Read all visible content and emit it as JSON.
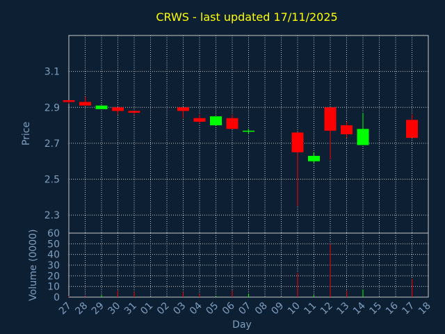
{
  "chart_data": {
    "type": "candlestick",
    "title": "CRWS - last updated 17/11/2025",
    "xlabel": "Day",
    "price_ylabel": "Price",
    "volume_ylabel": "Volume (0000)",
    "x_ticks": [
      "27",
      "28",
      "29",
      "30",
      "31",
      "01",
      "02",
      "03",
      "04",
      "05",
      "06",
      "07",
      "08",
      "09",
      "10",
      "11",
      "12",
      "13",
      "14",
      "15",
      "16",
      "17",
      "18"
    ],
    "price_ticks": [
      2.3,
      2.5,
      2.7,
      2.9,
      3.1
    ],
    "price_ylim": [
      2.2,
      3.3
    ],
    "volume_ticks": [
      0,
      10,
      20,
      30,
      40,
      50,
      60
    ],
    "volume_ylim": [
      0,
      60
    ],
    "grid": true,
    "up_color": "#00ff00",
    "down_color": "#ff0000",
    "candles": [
      {
        "day": "27",
        "open": 2.94,
        "high": 2.94,
        "low": 2.92,
        "close": 2.93,
        "volume": 1
      },
      {
        "day": "28",
        "open": 2.93,
        "high": 2.96,
        "low": 2.91,
        "close": 2.91,
        "volume": 1
      },
      {
        "day": "29",
        "open": 2.89,
        "high": 2.91,
        "low": 2.89,
        "close": 2.91,
        "volume": 2
      },
      {
        "day": "30",
        "open": 2.9,
        "high": 2.9,
        "low": 2.86,
        "close": 2.88,
        "volume": 6
      },
      {
        "day": "31",
        "open": 2.88,
        "high": 2.88,
        "low": 2.86,
        "close": 2.87,
        "volume": 5
      },
      {
        "day": "03",
        "open": 2.9,
        "high": 2.9,
        "low": 2.84,
        "close": 2.88,
        "volume": 5
      },
      {
        "day": "04",
        "open": 2.84,
        "high": 2.86,
        "low": 2.81,
        "close": 2.82,
        "volume": 3
      },
      {
        "day": "05",
        "open": 2.8,
        "high": 2.85,
        "low": 2.8,
        "close": 2.85,
        "volume": 1
      },
      {
        "day": "06",
        "open": 2.84,
        "high": 2.86,
        "low": 2.78,
        "close": 2.78,
        "volume": 6
      },
      {
        "day": "07",
        "open": 2.77,
        "high": 2.78,
        "low": 2.75,
        "close": 2.77,
        "volume": 3
      },
      {
        "day": "10",
        "open": 2.76,
        "high": 2.76,
        "low": 2.35,
        "close": 2.65,
        "volume": 23
      },
      {
        "day": "11",
        "open": 2.6,
        "high": 2.65,
        "low": 2.59,
        "close": 2.63,
        "volume": 2
      },
      {
        "day": "12",
        "open": 2.9,
        "high": 2.9,
        "low": 2.61,
        "close": 2.77,
        "volume": 50
      },
      {
        "day": "13",
        "open": 2.8,
        "high": 2.82,
        "low": 2.73,
        "close": 2.75,
        "volume": 6
      },
      {
        "day": "14",
        "open": 2.69,
        "high": 2.87,
        "low": 2.69,
        "close": 2.78,
        "volume": 7
      },
      {
        "day": "17",
        "open": 2.83,
        "high": 2.86,
        "low": 2.73,
        "close": 2.73,
        "volume": 17
      }
    ]
  }
}
